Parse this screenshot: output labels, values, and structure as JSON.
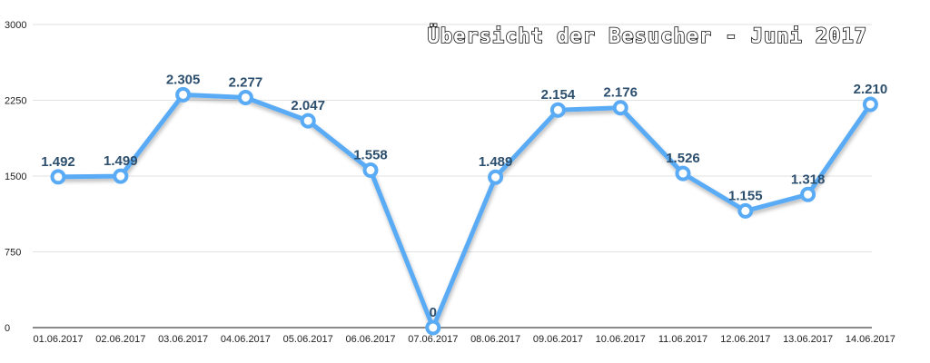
{
  "chart_data": {
    "type": "line",
    "title": "Übersicht der Besucher - Juni 2017",
    "xlabel": "",
    "ylabel": "",
    "categories": [
      "01.06.2017",
      "02.06.2017",
      "03.06.2017",
      "04.06.2017",
      "05.06.2017",
      "06.06.2017",
      "07.06.2017",
      "08.06.2017",
      "09.06.2017",
      "10.06.2017",
      "11.06.2017",
      "12.06.2017",
      "13.06.2017",
      "14.06.2017"
    ],
    "series": [
      {
        "values": [
          1492,
          1499,
          2305,
          2277,
          2047,
          1558,
          0,
          1489,
          2154,
          2176,
          1526,
          1155,
          1318,
          2210
        ],
        "labels": [
          "1.492",
          "1.499",
          "2.305",
          "2.277",
          "2.047",
          "1.558",
          "0",
          "1.489",
          "2.154",
          "2.176",
          "1.526",
          "1.155",
          "1.318",
          "2.210"
        ]
      }
    ],
    "ylim": [
      0,
      3000
    ],
    "yticks": [
      0,
      750,
      1500,
      2250,
      3000
    ],
    "ytick_labels": [
      "0",
      "750",
      "1500",
      "2250",
      "3000"
    ],
    "grid": true,
    "line_color": "#5aabf5"
  }
}
